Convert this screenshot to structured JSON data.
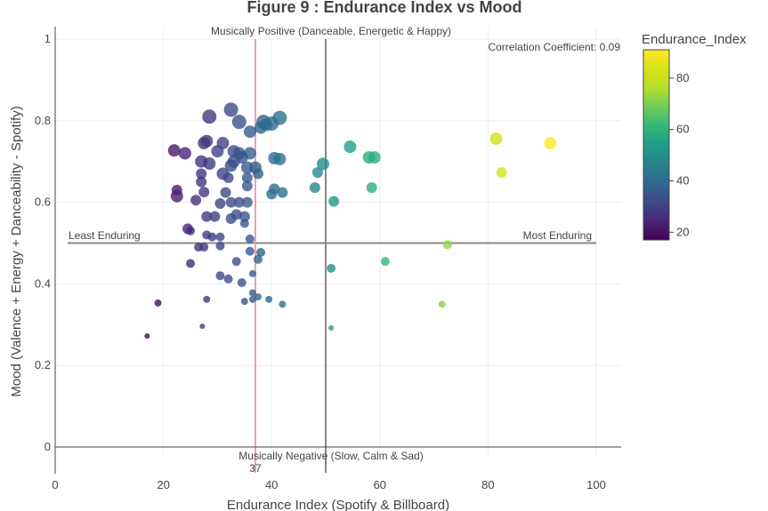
{
  "chart_data": {
    "type": "scatter",
    "title": "Figure 9 : Endurance Index vs Mood",
    "xlabel": "Endurance Index (Spotify & Billboard)",
    "ylabel": "Mood (Valence + Energy + Danceability - Spotify)",
    "xlim": [
      0,
      104
    ],
    "ylim": [
      -0.02,
      1.04
    ],
    "x_ticks": [
      0,
      20,
      40,
      60,
      80,
      100
    ],
    "y_ticks": [
      0,
      0.2,
      0.4,
      0.6,
      0.8,
      1
    ],
    "grid": true,
    "colorbar": {
      "title": "Endurance_Index",
      "range": [
        17,
        91
      ],
      "ticks": [
        20,
        40,
        60,
        80
      ],
      "colorscale": "viridis"
    },
    "reference_lines": [
      {
        "type": "vertical",
        "x": 50,
        "color": "#888888"
      },
      {
        "type": "horizontal",
        "y": 0.5,
        "color": "#888888"
      },
      {
        "type": "vertical",
        "x": 37,
        "color": "#e8a0b4"
      }
    ],
    "annotations": [
      {
        "text": "Musically Positive (Danceable, Energetic & Happy)",
        "x": 50,
        "y": 1.02
      },
      {
        "text": "Musically Negative (Slow, Calm & Sad)",
        "x": 50,
        "y": -0.02
      },
      {
        "text": "Least Enduring",
        "x": 2.5,
        "y": 0.51
      },
      {
        "text": "Most Enduring",
        "x": 99,
        "y": 0.51
      },
      {
        "text": "Correlation Coefficient:  0.09",
        "x": 100,
        "y": 0.98
      },
      {
        "text": "37",
        "x": 37,
        "y": -0.05
      }
    ],
    "points": [
      {
        "x": 17,
        "y": 0.272,
        "size": 3
      },
      {
        "x": 19,
        "y": 0.353,
        "size": 4
      },
      {
        "x": 22,
        "y": 0.727,
        "size": 7
      },
      {
        "x": 22.5,
        "y": 0.63,
        "size": 6
      },
      {
        "x": 22.5,
        "y": 0.615,
        "size": 7
      },
      {
        "x": 24,
        "y": 0.72,
        "size": 7
      },
      {
        "x": 24.5,
        "y": 0.535,
        "size": 6
      },
      {
        "x": 25,
        "y": 0.53,
        "size": 5
      },
      {
        "x": 25,
        "y": 0.45,
        "size": 5
      },
      {
        "x": 26,
        "y": 0.605,
        "size": 6
      },
      {
        "x": 26.5,
        "y": 0.49,
        "size": 5
      },
      {
        "x": 27,
        "y": 0.7,
        "size": 7
      },
      {
        "x": 27,
        "y": 0.67,
        "size": 6
      },
      {
        "x": 27,
        "y": 0.65,
        "size": 6
      },
      {
        "x": 27.2,
        "y": 0.296,
        "size": 3
      },
      {
        "x": 27.5,
        "y": 0.745,
        "size": 7
      },
      {
        "x": 27.5,
        "y": 0.625,
        "size": 6
      },
      {
        "x": 27.5,
        "y": 0.49,
        "size": 5
      },
      {
        "x": 28,
        "y": 0.75,
        "size": 7
      },
      {
        "x": 28,
        "y": 0.565,
        "size": 6
      },
      {
        "x": 28,
        "y": 0.52,
        "size": 5
      },
      {
        "x": 28,
        "y": 0.362,
        "size": 4
      },
      {
        "x": 28.5,
        "y": 0.81,
        "size": 8
      },
      {
        "x": 28.5,
        "y": 0.695,
        "size": 7
      },
      {
        "x": 29,
        "y": 0.515,
        "size": 5
      },
      {
        "x": 29.5,
        "y": 0.565,
        "size": 6
      },
      {
        "x": 30,
        "y": 0.725,
        "size": 7
      },
      {
        "x": 30.5,
        "y": 0.597,
        "size": 6
      },
      {
        "x": 30.5,
        "y": 0.515,
        "size": 5
      },
      {
        "x": 30.5,
        "y": 0.493,
        "size": 5
      },
      {
        "x": 30.5,
        "y": 0.42,
        "size": 5
      },
      {
        "x": 31,
        "y": 0.745,
        "size": 7
      },
      {
        "x": 31,
        "y": 0.67,
        "size": 7
      },
      {
        "x": 31.5,
        "y": 0.624,
        "size": 6
      },
      {
        "x": 32,
        "y": 0.66,
        "size": 6
      },
      {
        "x": 32,
        "y": 0.412,
        "size": 5
      },
      {
        "x": 32.5,
        "y": 0.827,
        "size": 8
      },
      {
        "x": 32.5,
        "y": 0.69,
        "size": 7
      },
      {
        "x": 32.5,
        "y": 0.6,
        "size": 6
      },
      {
        "x": 32.5,
        "y": 0.56,
        "size": 6
      },
      {
        "x": 33,
        "y": 0.725,
        "size": 7
      },
      {
        "x": 33,
        "y": 0.7,
        "size": 7
      },
      {
        "x": 33.5,
        "y": 0.57,
        "size": 6
      },
      {
        "x": 33.5,
        "y": 0.455,
        "size": 5
      },
      {
        "x": 34,
        "y": 0.797,
        "size": 8
      },
      {
        "x": 34,
        "y": 0.72,
        "size": 7
      },
      {
        "x": 34,
        "y": 0.6,
        "size": 6
      },
      {
        "x": 34.5,
        "y": 0.71,
        "size": 7
      },
      {
        "x": 34.5,
        "y": 0.403,
        "size": 5
      },
      {
        "x": 35,
        "y": 0.565,
        "size": 6
      },
      {
        "x": 35,
        "y": 0.548,
        "size": 5
      },
      {
        "x": 35,
        "y": 0.357,
        "size": 4
      },
      {
        "x": 35.5,
        "y": 0.685,
        "size": 7
      },
      {
        "x": 35.5,
        "y": 0.66,
        "size": 6
      },
      {
        "x": 35.5,
        "y": 0.64,
        "size": 6
      },
      {
        "x": 35.5,
        "y": 0.6,
        "size": 6
      },
      {
        "x": 36,
        "y": 0.773,
        "size": 7
      },
      {
        "x": 36,
        "y": 0.72,
        "size": 7
      },
      {
        "x": 36,
        "y": 0.51,
        "size": 5
      },
      {
        "x": 36,
        "y": 0.48,
        "size": 5
      },
      {
        "x": 36.5,
        "y": 0.425,
        "size": 4
      },
      {
        "x": 36.5,
        "y": 0.378,
        "size": 4
      },
      {
        "x": 36.5,
        "y": 0.362,
        "size": 4
      },
      {
        "x": 37,
        "y": 0.685,
        "size": 7
      },
      {
        "x": 37.5,
        "y": 0.67,
        "size": 6
      },
      {
        "x": 37.5,
        "y": 0.46,
        "size": 5
      },
      {
        "x": 37.5,
        "y": 0.368,
        "size": 4
      },
      {
        "x": 38,
        "y": 0.783,
        "size": 7
      },
      {
        "x": 38,
        "y": 0.477,
        "size": 5
      },
      {
        "x": 38.5,
        "y": 0.797,
        "size": 8
      },
      {
        "x": 39,
        "y": 0.79,
        "size": 7
      },
      {
        "x": 39.5,
        "y": 0.362,
        "size": 4
      },
      {
        "x": 40,
        "y": 0.793,
        "size": 8
      },
      {
        "x": 40,
        "y": 0.62,
        "size": 6
      },
      {
        "x": 40.5,
        "y": 0.708,
        "size": 7
      },
      {
        "x": 40.5,
        "y": 0.633,
        "size": 6
      },
      {
        "x": 41.5,
        "y": 0.706,
        "size": 7
      },
      {
        "x": 41.5,
        "y": 0.807,
        "size": 8
      },
      {
        "x": 42,
        "y": 0.624,
        "size": 6
      },
      {
        "x": 42,
        "y": 0.35,
        "size": 4
      },
      {
        "x": 48,
        "y": 0.636,
        "size": 6
      },
      {
        "x": 48.5,
        "y": 0.673,
        "size": 6
      },
      {
        "x": 49.5,
        "y": 0.694,
        "size": 7
      },
      {
        "x": 51,
        "y": 0.438,
        "size": 5
      },
      {
        "x": 51,
        "y": 0.292,
        "size": 3
      },
      {
        "x": 51.5,
        "y": 0.602,
        "size": 6
      },
      {
        "x": 54.5,
        "y": 0.736,
        "size": 7
      },
      {
        "x": 58,
        "y": 0.71,
        "size": 7
      },
      {
        "x": 58.5,
        "y": 0.636,
        "size": 6
      },
      {
        "x": 59,
        "y": 0.71,
        "size": 7
      },
      {
        "x": 61,
        "y": 0.455,
        "size": 5
      },
      {
        "x": 71.5,
        "y": 0.35,
        "size": 4
      },
      {
        "x": 72.5,
        "y": 0.496,
        "size": 5
      },
      {
        "x": 81.5,
        "y": 0.756,
        "size": 7
      },
      {
        "x": 82.5,
        "y": 0.673,
        "size": 6
      },
      {
        "x": 91.5,
        "y": 0.745,
        "size": 7
      }
    ]
  }
}
